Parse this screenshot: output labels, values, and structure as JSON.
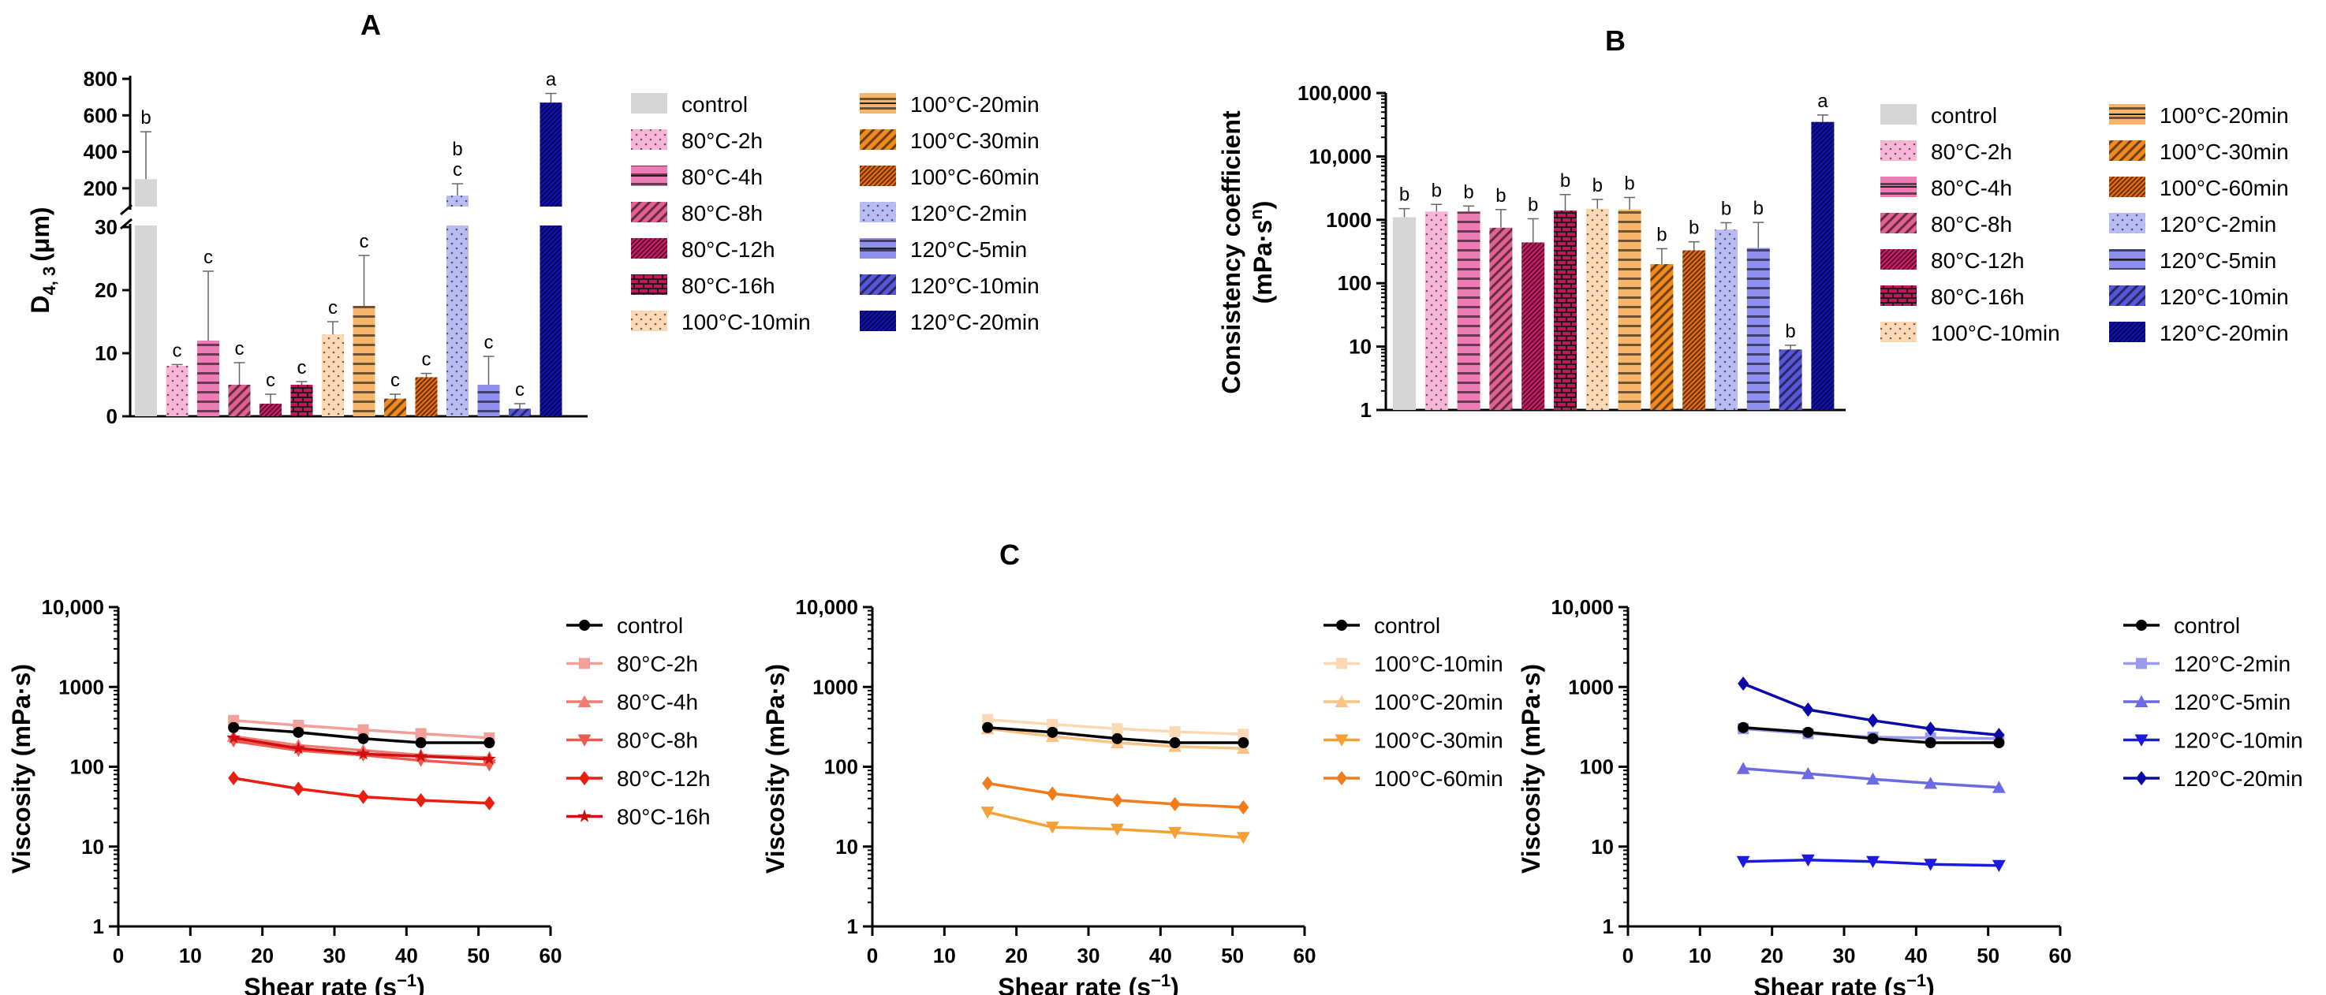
{
  "chart_data": [
    {
      "panel": "A",
      "type": "bar",
      "title": "A",
      "ylabel": "D4, 3 (μm)",
      "ylabel_main": "D",
      "ylabel_sub": "4, 3",
      "ylabel_unit": "(μm)",
      "axis_break": {
        "lower": [
          0,
          30
        ],
        "upper": [
          100,
          800
        ]
      },
      "yticks_lower": [
        "0",
        "10",
        "20",
        "30"
      ],
      "yticks_upper": [
        "200",
        "400",
        "600",
        "800"
      ],
      "categories": [
        "control",
        "80°C-2h",
        "80°C-4h",
        "80°C-8h",
        "80°C-12h",
        "80°C-16h",
        "100°C-10min",
        "100°C-20min",
        "100°C-30min",
        "100°C-60min",
        "120°C-2min",
        "120°C-5min",
        "120°C-10min",
        "120°C-20min"
      ],
      "values": [
        250,
        8,
        12,
        5,
        2,
        5,
        13,
        17.5,
        2.8,
        6.2,
        160,
        5,
        1.2,
        670
      ],
      "errors": [
        260,
        0.2,
        11,
        3.5,
        1.5,
        0.5,
        2,
        8,
        0.7,
        0.6,
        65,
        4.5,
        0.8,
        50
      ],
      "labels": [
        "b",
        "c",
        "c",
        "c",
        "c",
        "c",
        "c",
        "c",
        "c",
        "c",
        "b\nc",
        "c",
        "c",
        "a"
      ],
      "legend": [
        "control",
        "80°C-2h",
        "80°C-4h",
        "80°C-8h",
        "80°C-12h",
        "80°C-16h",
        "100°C-10min",
        "100°C-20min",
        "100°C-30min",
        "100°C-60min",
        "120°C-2min",
        "120°C-5min",
        "120°C-10min",
        "120°C-20min"
      ]
    },
    {
      "panel": "B",
      "type": "bar",
      "title": "B",
      "ylabel_line1": "Consistency coefficient",
      "ylabel_line2": "(mPa·s",
      "ylabel_sup": "n",
      "ylabel_close": ")",
      "yscale": "log",
      "ylim": [
        1,
        100000
      ],
      "yticks": [
        "1",
        "10",
        "100",
        "1000",
        "10,000",
        "100,000"
      ],
      "categories": [
        "control",
        "80°C-2h",
        "80°C-4h",
        "80°C-8h",
        "80°C-12h",
        "80°C-16h",
        "100°C-10min",
        "100°C-20min",
        "100°C-30min",
        "100°C-60min",
        "120°C-2min",
        "120°C-5min",
        "120°C-10min",
        "120°C-20min"
      ],
      "values": [
        1100,
        1350,
        1350,
        750,
        440,
        1400,
        1500,
        1450,
        200,
        330,
        700,
        360,
        9,
        35000
      ],
      "errors": [
        400,
        400,
        300,
        700,
        600,
        1100,
        600,
        800,
        150,
        120,
        200,
        550,
        1.5,
        10000
      ],
      "labels": [
        "b",
        "b",
        "b",
        "b",
        "b",
        "b",
        "b",
        "b",
        "b",
        "b",
        "b",
        "b",
        "b",
        "a"
      ],
      "legend": [
        "control",
        "80°C-2h",
        "80°C-4h",
        "80°C-8h",
        "80°C-12h",
        "80°C-16h",
        "100°C-10min",
        "100°C-20min",
        "100°C-30min",
        "100°C-60min",
        "120°C-2min",
        "120°C-5min",
        "120°C-10min",
        "120°C-20min"
      ]
    },
    {
      "panel": "C1",
      "type": "line",
      "title": "C",
      "xlabel": "Shear rate (s",
      "xlabel_sup": "−1",
      "xlabel_close": ")",
      "ylabel": "Viscosity (mPa·s)",
      "yscale": "log",
      "xlim": [
        0,
        60
      ],
      "ylim": [
        1,
        10000
      ],
      "xticks": [
        "0",
        "10",
        "20",
        "30",
        "40",
        "50",
        "60"
      ],
      "yticks": [
        "1",
        "10",
        "100",
        "1000",
        "10,000"
      ],
      "x": [
        16,
        25,
        34,
        42,
        51.5
      ],
      "series": [
        {
          "name": "control",
          "values": [
            310,
            270,
            225,
            200,
            200
          ],
          "color": "#000000",
          "marker": "circle"
        },
        {
          "name": "80°C-2h",
          "values": [
            380,
            330,
            290,
            260,
            230
          ],
          "color": "#f4a09a",
          "marker": "square"
        },
        {
          "name": "80°C-4h",
          "values": [
            240,
            185,
            160,
            140,
            130
          ],
          "color": "#f07c74",
          "marker": "triangle-up"
        },
        {
          "name": "80°C-8h",
          "values": [
            210,
            160,
            140,
            120,
            105
          ],
          "color": "#ee5a50",
          "marker": "triangle-down"
        },
        {
          "name": "80°C-12h",
          "values": [
            72,
            53,
            42,
            38,
            35
          ],
          "color": "#e81e10",
          "marker": "diamond"
        },
        {
          "name": "80°C-16h",
          "values": [
            230,
            170,
            145,
            135,
            125
          ],
          "color": "#d01010",
          "marker": "star"
        }
      ]
    },
    {
      "panel": "C2",
      "type": "line",
      "xlabel": "Shear rate (s",
      "xlabel_sup": "−1",
      "xlabel_close": ")",
      "ylabel": "Viscosity (mPa·s)",
      "yscale": "log",
      "xlim": [
        0,
        60
      ],
      "ylim": [
        1,
        10000
      ],
      "xticks": [
        "0",
        "10",
        "20",
        "30",
        "40",
        "50",
        "60"
      ],
      "yticks": [
        "1",
        "10",
        "100",
        "1000",
        "10,000"
      ],
      "x": [
        16,
        25,
        34,
        42,
        51.5
      ],
      "series": [
        {
          "name": "control",
          "values": [
            310,
            270,
            225,
            200,
            200
          ],
          "color": "#000000",
          "marker": "circle"
        },
        {
          "name": "100°C-10min",
          "values": [
            390,
            340,
            300,
            275,
            255
          ],
          "color": "#fbd9b5",
          "marker": "square"
        },
        {
          "name": "100°C-20min",
          "values": [
            300,
            240,
            200,
            180,
            170
          ],
          "color": "#f8c384",
          "marker": "triangle-up"
        },
        {
          "name": "100°C-30min",
          "values": [
            27,
            17.5,
            16.5,
            15,
            13
          ],
          "color": "#f6a035",
          "marker": "triangle-down"
        },
        {
          "name": "100°C-60min",
          "values": [
            62,
            46,
            38,
            34,
            31
          ],
          "color": "#f27b1a",
          "marker": "diamond"
        }
      ]
    },
    {
      "panel": "C3",
      "type": "line",
      "xlabel": "Shear rate (s",
      "xlabel_sup": "−1",
      "xlabel_close": ")",
      "ylabel": "Viscosity (mPa·s)",
      "yscale": "log",
      "xlim": [
        0,
        60
      ],
      "ylim": [
        1,
        10000
      ],
      "xticks": [
        "0",
        "10",
        "20",
        "30",
        "40",
        "50",
        "60"
      ],
      "yticks": [
        "1",
        "10",
        "100",
        "1000",
        "10,000"
      ],
      "x": [
        16,
        25,
        34,
        42,
        51.5
      ],
      "series": [
        {
          "name": "control",
          "values": [
            310,
            270,
            225,
            200,
            200
          ],
          "color": "#000000",
          "marker": "circle"
        },
        {
          "name": "120°C-2min",
          "values": [
            300,
            260,
            235,
            230,
            225
          ],
          "color": "#9a9af0",
          "marker": "square"
        },
        {
          "name": "120°C-5min",
          "values": [
            95,
            82,
            70,
            62,
            55
          ],
          "color": "#6b6be6",
          "marker": "triangle-up"
        },
        {
          "name": "120°C-10min",
          "values": [
            6.5,
            6.8,
            6.5,
            6.0,
            5.8
          ],
          "color": "#1a1ae0",
          "marker": "triangle-down"
        },
        {
          "name": "120°C-20min",
          "values": [
            1100,
            520,
            380,
            300,
            250
          ],
          "color": "#0a0aa8",
          "marker": "diamond"
        }
      ]
    }
  ],
  "bar_styles": [
    {
      "color": "#d6d6d6",
      "pattern": "none"
    },
    {
      "color": "#f7b6d8",
      "pattern": "dots"
    },
    {
      "color": "#ee7cb4",
      "pattern": "hlines"
    },
    {
      "color": "#e0608f",
      "pattern": "diag"
    },
    {
      "color": "#cc1f68",
      "pattern": "diag-fine"
    },
    {
      "color": "#c2185b",
      "pattern": "bricks"
    },
    {
      "color": "#fcd8b4",
      "pattern": "dots"
    },
    {
      "color": "#f7b56b",
      "pattern": "hlines"
    },
    {
      "color": "#f08a1e",
      "pattern": "diag"
    },
    {
      "color": "#e86c16",
      "pattern": "diag-fine"
    },
    {
      "color": "#b8bcf2",
      "pattern": "dots"
    },
    {
      "color": "#8f8ff0",
      "pattern": "hlines"
    },
    {
      "color": "#5656d8",
      "pattern": "diag"
    },
    {
      "color": "#1212b4",
      "pattern": "diag-fine"
    }
  ]
}
